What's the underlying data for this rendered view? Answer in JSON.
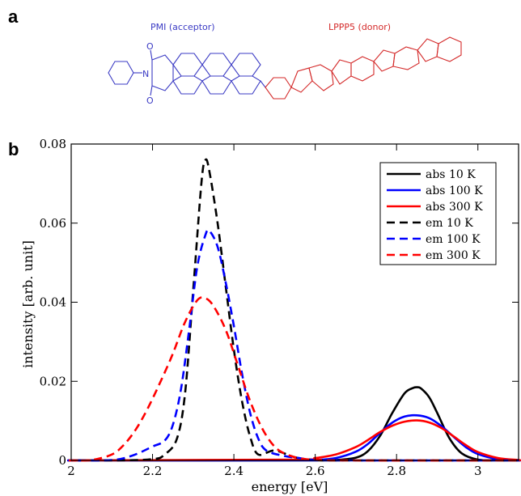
{
  "panels": {
    "a": "a",
    "b": "b"
  },
  "molecule": {
    "acceptor_label": "PMI (acceptor)",
    "donor_label": "LPPP5 (donor)",
    "atom_labels": {
      "n": "N",
      "o": "O"
    },
    "colors": {
      "acceptor": "#3b3bc4",
      "donor": "#d42a2a"
    }
  },
  "chart_data": {
    "type": "line",
    "title": "",
    "xlabel": "energy [eV]",
    "ylabel": "intensity [arb. unit]",
    "xlim": [
      2.0,
      3.1
    ],
    "ylim": [
      0.0,
      0.08
    ],
    "xticks": [
      2,
      2.2,
      2.4,
      2.6,
      2.8,
      3
    ],
    "xtick_labels": [
      "2",
      "2.2",
      "2.4",
      "2.6",
      "2.8",
      "3"
    ],
    "yticks": [
      0,
      0.02,
      0.04,
      0.06,
      0.08
    ],
    "ytick_labels": [
      "0",
      "0.02",
      "0.04",
      "0.06",
      "0.08"
    ],
    "grid": false,
    "legend_position": "top-right",
    "series": [
      {
        "name": "abs 10 K",
        "color": "#000000",
        "dash": "solid",
        "x": [
          2.6,
          2.65,
          2.7,
          2.73,
          2.76,
          2.79,
          2.82,
          2.84,
          2.85,
          2.86,
          2.88,
          2.9,
          2.93,
          2.96,
          3.0,
          3.05,
          3.1
        ],
        "y": [
          0,
          0.0001,
          0.0007,
          0.0024,
          0.0063,
          0.0121,
          0.017,
          0.0183,
          0.0185,
          0.0182,
          0.016,
          0.012,
          0.0056,
          0.0018,
          0.0002,
          0,
          0
        ]
      },
      {
        "name": "abs 100 K",
        "color": "#0000ff",
        "dash": "solid",
        "x": [
          2.55,
          2.6,
          2.65,
          2.7,
          2.73,
          2.76,
          2.79,
          2.82,
          2.85,
          2.88,
          2.91,
          2.94,
          2.97,
          3.0,
          3.05,
          3.1
        ],
        "y": [
          0,
          0.0001,
          0.0006,
          0.0022,
          0.0042,
          0.007,
          0.0096,
          0.0111,
          0.0114,
          0.0107,
          0.0087,
          0.006,
          0.0034,
          0.0016,
          0.0003,
          0
        ]
      },
      {
        "name": "abs 300 K",
        "color": "#ff0000",
        "dash": "solid",
        "x": [
          2.55,
          2.6,
          2.65,
          2.7,
          2.73,
          2.76,
          2.79,
          2.82,
          2.85,
          2.88,
          2.91,
          2.94,
          2.97,
          3.0,
          3.05,
          3.1
        ],
        "y": [
          0.0002,
          0.0006,
          0.0015,
          0.0034,
          0.0052,
          0.0072,
          0.0088,
          0.0098,
          0.0101,
          0.0096,
          0.0082,
          0.0061,
          0.0039,
          0.0021,
          0.0006,
          0.0001
        ]
      },
      {
        "name": "em 10 K",
        "color": "#000000",
        "dash": "dashed",
        "x": [
          2.0,
          2.1,
          2.2,
          2.23,
          2.26,
          2.28,
          2.3,
          2.32,
          2.33,
          2.34,
          2.36,
          2.38,
          2.4,
          2.42,
          2.44,
          2.46,
          2.5,
          2.55,
          2.6,
          2.7
        ],
        "y": [
          0,
          0,
          0.0003,
          0.0015,
          0.0055,
          0.017,
          0.043,
          0.07,
          0.076,
          0.073,
          0.06,
          0.044,
          0.028,
          0.015,
          0.006,
          0.0015,
          0.0025,
          0.0008,
          0.0001,
          0
        ]
      },
      {
        "name": "em 100 K",
        "color": "#0000ff",
        "dash": "dashed",
        "x": [
          2.0,
          2.1,
          2.15,
          2.2,
          2.23,
          2.25,
          2.27,
          2.29,
          2.31,
          2.33,
          2.34,
          2.36,
          2.38,
          2.4,
          2.42,
          2.44,
          2.46,
          2.48,
          2.52,
          2.56,
          2.6,
          2.7
        ],
        "y": [
          0,
          0.0001,
          0.0012,
          0.0035,
          0.005,
          0.009,
          0.018,
          0.033,
          0.049,
          0.057,
          0.058,
          0.054,
          0.045,
          0.034,
          0.022,
          0.012,
          0.0055,
          0.0025,
          0.0012,
          0.0006,
          0.0001,
          0
        ]
      },
      {
        "name": "em 300 K",
        "color": "#ff0000",
        "dash": "dashed",
        "x": [
          2.0,
          2.05,
          2.1,
          2.13,
          2.16,
          2.19,
          2.22,
          2.25,
          2.28,
          2.31,
          2.33,
          2.35,
          2.38,
          2.41,
          2.44,
          2.47,
          2.5,
          2.53,
          2.57,
          2.62,
          2.7
        ],
        "y": [
          0,
          0.0001,
          0.0015,
          0.004,
          0.008,
          0.0135,
          0.02,
          0.027,
          0.035,
          0.0405,
          0.041,
          0.039,
          0.033,
          0.024,
          0.015,
          0.008,
          0.0035,
          0.0015,
          0.0004,
          0.0001,
          0
        ]
      }
    ]
  }
}
